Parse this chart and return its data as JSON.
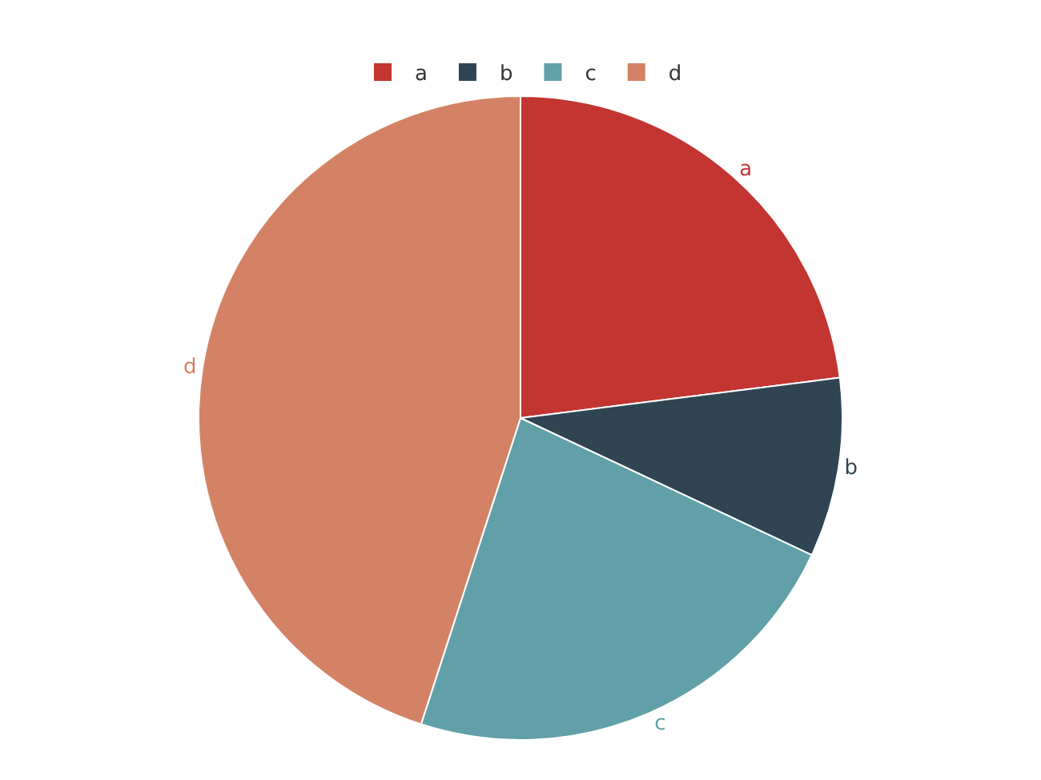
{
  "chart_data": {
    "type": "pie",
    "categories": [
      "a",
      "b",
      "c",
      "d"
    ],
    "values": [
      23,
      9,
      23,
      45
    ],
    "colors": [
      "#c23531",
      "#2f4554",
      "#61a0a8",
      "#d48265"
    ],
    "legend": "top"
  }
}
